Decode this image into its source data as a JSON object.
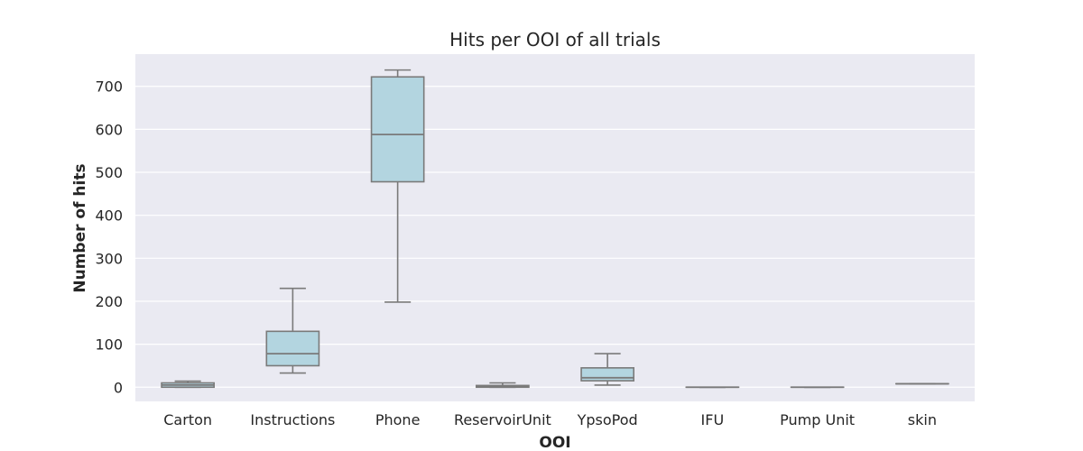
{
  "chart_data": {
    "type": "box",
    "title": "Hits per OOI of all trials",
    "xlabel": "OOI",
    "ylabel": "Number of hits",
    "ylim": [
      -33,
      775
    ],
    "yticks": [
      0,
      100,
      200,
      300,
      400,
      500,
      600,
      700
    ],
    "grid": true,
    "categories": [
      "Carton",
      "Instructions",
      "Phone",
      "ReservoirUnit",
      "YpsoPod",
      "IFU",
      "Pump Unit",
      "skin"
    ],
    "boxes": [
      {
        "category": "Carton",
        "whisker_low": 0,
        "q1": 0,
        "median": 5,
        "q3": 10,
        "whisker_high": 14
      },
      {
        "category": "Instructions",
        "whisker_low": 33,
        "q1": 50,
        "median": 78,
        "q3": 130,
        "whisker_high": 230
      },
      {
        "category": "Phone",
        "whisker_low": 198,
        "q1": 478,
        "median": 588,
        "q3": 722,
        "whisker_high": 738
      },
      {
        "category": "ReservoirUnit",
        "whisker_low": 0,
        "q1": 0,
        "median": 2,
        "q3": 4,
        "whisker_high": 10
      },
      {
        "category": "YpsoPod",
        "whisker_low": 5,
        "q1": 15,
        "median": 22,
        "q3": 45,
        "whisker_high": 78
      },
      {
        "category": "IFU",
        "whisker_low": 0,
        "q1": 0,
        "median": 0,
        "q3": 0,
        "whisker_high": 0
      },
      {
        "category": "Pump Unit",
        "whisker_low": 0,
        "q1": 0,
        "median": 0,
        "q3": 0,
        "whisker_high": 0
      },
      {
        "category": "skin",
        "whisker_low": 8,
        "q1": 8,
        "median": 8,
        "q3": 8,
        "whisker_high": 8
      }
    ],
    "colors": {
      "plot_background": "#eaeaf2",
      "grid": "#ffffff",
      "box_fill": "#b3d5e0",
      "box_line": "#7a7a7a"
    }
  }
}
